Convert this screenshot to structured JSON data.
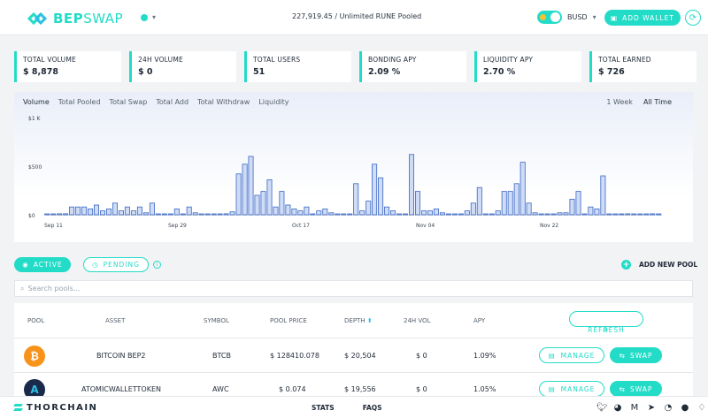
{
  "header": {
    "logo_bep": "BEP",
    "logo_swap": "SWAP",
    "pooled_text": "227,919.45 / Unlimited RUNE Pooled",
    "currency": "BUSD",
    "add_wallet": "ADD WALLET"
  },
  "stats": [
    {
      "label": "TOTAL VOLUME",
      "value": "$ 8,878"
    },
    {
      "label": "24H VOLUME",
      "value": "$ 0"
    },
    {
      "label": "TOTAL USERS",
      "value": "51"
    },
    {
      "label": "BONDING APY",
      "value": "2.09 %"
    },
    {
      "label": "LIQUIDITY APY",
      "value": "2.70 %"
    },
    {
      "label": "TOTAL EARNED",
      "value": "$ 726"
    }
  ],
  "chart_tabs": [
    "Volume",
    "Total Pooled",
    "Total Swap",
    "Total Add",
    "Total Withdraw",
    "Liquidity"
  ],
  "time_tabs": [
    "1 Week",
    "All Time"
  ],
  "chart_data": {
    "type": "bar",
    "ytick_labels": [
      "$1 K",
      "$500",
      "$0"
    ],
    "yticks": [
      1000,
      500,
      0
    ],
    "ylim": [
      0,
      1000
    ],
    "x_labels": [
      "Sep 11",
      "Sep 29",
      "Oct 17",
      "Nov 04",
      "Nov 22"
    ],
    "values": [
      5,
      5,
      10,
      10,
      80,
      80,
      80,
      60,
      100,
      40,
      60,
      120,
      40,
      80,
      40,
      80,
      20,
      120,
      0,
      5,
      5,
      60,
      0,
      80,
      20,
      0,
      5,
      0,
      5,
      10,
      30,
      420,
      520,
      600,
      200,
      240,
      360,
      80,
      240,
      100,
      60,
      40,
      80,
      5,
      40,
      60,
      20,
      5,
      5,
      5,
      320,
      40,
      140,
      520,
      380,
      80,
      40,
      0,
      0,
      620,
      240,
      40,
      40,
      60,
      20,
      5,
      0,
      0,
      40,
      120,
      280,
      0,
      0,
      40,
      240,
      240,
      320,
      540,
      120,
      20,
      0,
      0,
      5,
      20,
      20,
      160,
      240,
      0,
      80,
      60,
      400,
      0,
      0,
      0,
      10,
      0,
      0,
      0,
      10,
      0
    ]
  },
  "pools": {
    "active_label": "ACTIVE",
    "pending_label": "PENDING",
    "add_pool_label": "ADD NEW POOL",
    "search_placeholder": "Search pools...",
    "columns": [
      "POOL",
      "ASSET",
      "SYMBOL",
      "POOL PRICE",
      "DEPTH",
      "24H VOL",
      "APY"
    ],
    "refresh_label": "REFRESH",
    "manage_label": "MANAGE",
    "swap_label": "SWAP",
    "rows": [
      {
        "asset": "BITCOIN BEP2",
        "symbol": "BTCB",
        "price": "$ 128410.078",
        "depth": "$ 20,504",
        "vol": "$ 0",
        "apy": "1.09%",
        "coin_color": "#f7931a",
        "coin_glyph": "₿"
      },
      {
        "asset": "ATOMICWALLETTOKEN",
        "symbol": "AWC",
        "price": "$ 0.074",
        "depth": "$ 19,556",
        "vol": "$ 0",
        "apy": "1.05%",
        "coin_color": "#1b2a4a",
        "coin_glyph": "A"
      }
    ]
  },
  "footer": {
    "brand": "THORCHAIN",
    "links": [
      "STATS",
      "FAQS"
    ]
  }
}
